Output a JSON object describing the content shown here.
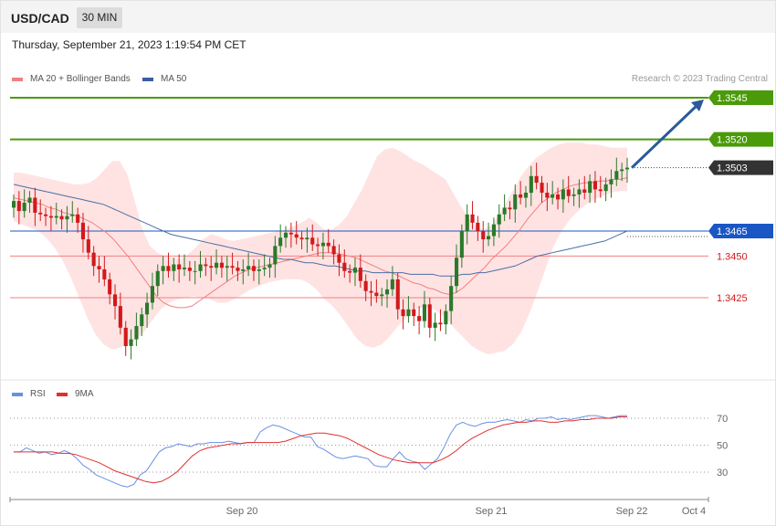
{
  "header": {
    "pair": "USD/CAD",
    "timeframe": "30 MIN",
    "timestamp": "Thursday, September 21, 2023 1:19:54 PM CET"
  },
  "legend": {
    "bollinger": "MA 20 + Bollinger Bands",
    "ma50": "MA 50",
    "credit": "Research © 2023 Trading Central",
    "rsi": "RSI",
    "rsi_ma": "9MA"
  },
  "colors": {
    "up": "#2a7a2a",
    "down": "#d2191b",
    "bands": "#ffe3e3",
    "ma20": "#f08080",
    "ma50": "#4a6fa5",
    "resistance": "#4a9a0a",
    "support": "#f08080",
    "pivot": "#1a56c4",
    "current": "#333333",
    "rsi": "#6b8fe3",
    "rsi_ma": "#e03030",
    "arrow": "#2a5a9a"
  },
  "chart_data": [
    {
      "type": "candlestick",
      "title": "USD/CAD 30 MIN",
      "ylim": [
        1.339,
        1.356
      ],
      "levels": [
        {
          "value": 1.3545,
          "label": "1.3545",
          "kind": "resistance"
        },
        {
          "value": 1.352,
          "label": "1.3520",
          "kind": "resistance"
        },
        {
          "value": 1.3503,
          "label": "1.3503",
          "kind": "current"
        },
        {
          "value": 1.3465,
          "label": "1.3465",
          "kind": "pivot"
        },
        {
          "value": 1.345,
          "label": "1.3450",
          "kind": "support"
        },
        {
          "value": 1.3425,
          "label": "1.3425",
          "kind": "support"
        }
      ],
      "xticks": [
        "Sep 20",
        "Sep 21",
        "Sep 22",
        "Oct 4"
      ],
      "closes": [
        1.3483,
        1.3477,
        1.3482,
        1.3485,
        1.3476,
        1.3475,
        1.3474,
        1.3473,
        1.3474,
        1.3472,
        1.3474,
        1.3475,
        1.347,
        1.346,
        1.3452,
        1.3444,
        1.3442,
        1.3436,
        1.3427,
        1.342,
        1.3407,
        1.3396,
        1.34,
        1.3408,
        1.3415,
        1.3422,
        1.3432,
        1.3441,
        1.3444,
        1.3441,
        1.3445,
        1.3442,
        1.3443,
        1.3441,
        1.3441,
        1.3445,
        1.3444,
        1.3443,
        1.3446,
        1.3443,
        1.3444,
        1.3443,
        1.3441,
        1.3442,
        1.3444,
        1.3441,
        1.3442,
        1.3443,
        1.3445,
        1.3456,
        1.3461,
        1.3464,
        1.3463,
        1.3461,
        1.346,
        1.3461,
        1.3457,
        1.3456,
        1.3458,
        1.3456,
        1.3451,
        1.3446,
        1.3441,
        1.344,
        1.3443,
        1.3435,
        1.3429,
        1.3428,
        1.3426,
        1.3427,
        1.343,
        1.3436,
        1.3418,
        1.3414,
        1.3418,
        1.3414,
        1.3411,
        1.3421,
        1.3407,
        1.341,
        1.3409,
        1.3417,
        1.3432,
        1.3449,
        1.3465,
        1.3475,
        1.347,
        1.3465,
        1.346,
        1.3462,
        1.3469,
        1.3475,
        1.3479,
        1.3478,
        1.3487,
        1.3485,
        1.3488,
        1.3498,
        1.3494,
        1.3488,
        1.3485,
        1.3487,
        1.3484,
        1.349,
        1.3486,
        1.3487,
        1.349,
        1.3488,
        1.3495,
        1.349,
        1.3489,
        1.3493,
        1.3496,
        1.3501,
        1.3502,
        1.3503
      ],
      "ma20": [
        1.3485,
        1.3484,
        1.3483,
        1.3482,
        1.3481,
        1.3479,
        1.3478,
        1.3476,
        1.3475,
        1.3474,
        1.3472,
        1.347,
        1.3467,
        1.3464,
        1.346,
        1.3455,
        1.345,
        1.3444,
        1.3438,
        1.3432,
        1.3426,
        1.3422,
        1.342,
        1.3419,
        1.3419,
        1.342,
        1.3423,
        1.3426,
        1.3429,
        1.3432,
        1.3435,
        1.3438,
        1.344,
        1.3442,
        1.3443,
        1.3444,
        1.3445,
        1.3446,
        1.3447,
        1.3448,
        1.3449,
        1.345,
        1.3451,
        1.3452,
        1.3452,
        1.3452,
        1.3451,
        1.345,
        1.3449,
        1.3447,
        1.3445,
        1.3443,
        1.3441,
        1.344,
        1.3438,
        1.3436,
        1.3434,
        1.3433,
        1.3431,
        1.343,
        1.3428,
        1.3427,
        1.3428,
        1.3431,
        1.3435,
        1.3439,
        1.3443,
        1.3448,
        1.3452,
        1.3456,
        1.3461,
        1.3466,
        1.3472,
        1.3477,
        1.3482,
        1.3485,
        1.3488,
        1.349,
        1.3492,
        1.3493,
        1.3494,
        1.3494,
        1.3495,
        1.3495,
        1.3496,
        1.3496,
        1.3497
      ],
      "upper_band": [
        1.35,
        1.35,
        1.3499,
        1.3498,
        1.3497,
        1.3496,
        1.3495,
        1.3494,
        1.3493,
        1.3493,
        1.3494,
        1.3497,
        1.3502,
        1.3507,
        1.3507,
        1.3499,
        1.3483,
        1.3466,
        1.3456,
        1.3452,
        1.345,
        1.3449,
        1.3448,
        1.3451,
        1.3455,
        1.346,
        1.3463,
        1.3462,
        1.346,
        1.3459,
        1.346,
        1.3461,
        1.3462,
        1.3463,
        1.3464,
        1.3465,
        1.3466,
        1.3468,
        1.347,
        1.3473,
        1.347,
        1.3466,
        1.3466,
        1.3469,
        1.3474,
        1.3482,
        1.349,
        1.35,
        1.351,
        1.3514,
        1.3515,
        1.3513,
        1.351,
        1.3507,
        1.3505,
        1.3502,
        1.3499,
        1.3496,
        1.3488,
        1.348,
        1.3473,
        1.3468,
        1.3466,
        1.3468,
        1.3474,
        1.3482,
        1.349,
        1.3498,
        1.3504,
        1.3509,
        1.3512,
        1.3515,
        1.3517,
        1.3518,
        1.3518,
        1.3518,
        1.3517,
        1.3517,
        1.3516,
        1.3515,
        1.3515,
        1.3515
      ],
      "lower_band": [
        1.3471,
        1.3469,
        1.3467,
        1.3465,
        1.3461,
        1.3455,
        1.3447,
        1.3437,
        1.3425,
        1.3413,
        1.3403,
        1.3397,
        1.3394,
        1.3395,
        1.3397,
        1.34,
        1.3405,
        1.3412,
        1.3418,
        1.3422,
        1.3424,
        1.3425,
        1.3426,
        1.3425,
        1.3424,
        1.3422,
        1.3422,
        1.3424,
        1.3427,
        1.343,
        1.3432,
        1.3434,
        1.3435,
        1.3436,
        1.3436,
        1.3436,
        1.3434,
        1.343,
        1.3424,
        1.342,
        1.3414,
        1.3407,
        1.34,
        1.3396,
        1.3395,
        1.3397,
        1.3402,
        1.3408,
        1.3413,
        1.3418,
        1.3419,
        1.3419,
        1.3416,
        1.3412,
        1.3406,
        1.3401,
        1.3396,
        1.3393,
        1.3391,
        1.3392,
        1.3393,
        1.3397,
        1.3404,
        1.3415,
        1.3428,
        1.3442,
        1.3456,
        1.3465,
        1.3472,
        1.3477,
        1.3481,
        1.3484,
        1.3486,
        1.3488,
        1.3489,
        1.3489
      ],
      "ma50": [
        1.3493,
        1.3492,
        1.3491,
        1.349,
        1.3489,
        1.3488,
        1.3487,
        1.3486,
        1.3485,
        1.3484,
        1.3483,
        1.3482,
        1.3481,
        1.3479,
        1.3477,
        1.3475,
        1.3473,
        1.3471,
        1.3469,
        1.3467,
        1.3465,
        1.3463,
        1.3462,
        1.3461,
        1.346,
        1.3459,
        1.3458,
        1.3457,
        1.3456,
        1.3455,
        1.3454,
        1.3453,
        1.3452,
        1.3451,
        1.345,
        1.3449,
        1.3448,
        1.3448,
        1.3447,
        1.3446,
        1.3446,
        1.3445,
        1.3444,
        1.3444,
        1.3443,
        1.3442,
        1.3441,
        1.3441,
        1.344,
        1.344,
        1.344,
        1.344,
        1.344,
        1.3439,
        1.3439,
        1.3439,
        1.3439,
        1.3438,
        1.3438,
        1.3438,
        1.3439,
        1.3439,
        1.344,
        1.344,
        1.3441,
        1.3442,
        1.3443,
        1.3444,
        1.3446,
        1.3448,
        1.345,
        1.3451,
        1.3452,
        1.3453,
        1.3454,
        1.3455,
        1.3456,
        1.3457,
        1.3458,
        1.3459,
        1.3461,
        1.3463,
        1.3465
      ]
    },
    {
      "type": "line",
      "title": "RSI",
      "ylim": [
        15,
        85
      ],
      "yticks": [
        70,
        50,
        30
      ],
      "series": [
        {
          "name": "RSI",
          "values": [
            45,
            45,
            48,
            46,
            44,
            45,
            43,
            44,
            46,
            44,
            40,
            35,
            32,
            28,
            26,
            24,
            22,
            20,
            19,
            21,
            28,
            31,
            38,
            45,
            48,
            49,
            51,
            50,
            49,
            51,
            51,
            52,
            52,
            52,
            53,
            52,
            51,
            52,
            52,
            60,
            63,
            65,
            64,
            62,
            60,
            58,
            56,
            56,
            49,
            47,
            44,
            41,
            40,
            41,
            42,
            41,
            40,
            35,
            34,
            34,
            40,
            45,
            40,
            38,
            37,
            32,
            36,
            40,
            48,
            58,
            65,
            67,
            65,
            64,
            66,
            67,
            67,
            68,
            69,
            68,
            67,
            69,
            68,
            70,
            70,
            71,
            69,
            70,
            69,
            70,
            71,
            72,
            72,
            71,
            70,
            71,
            72,
            72
          ]
        },
        {
          "name": "9MA",
          "values": [
            45,
            45,
            45,
            45,
            45,
            45,
            44,
            44,
            43,
            41,
            39,
            37,
            34,
            31,
            29,
            27,
            25,
            23,
            22,
            23,
            26,
            30,
            36,
            42,
            46,
            48,
            49,
            50,
            51,
            51,
            52,
            52,
            52,
            52,
            52,
            53,
            55,
            57,
            58,
            59,
            59,
            58,
            57,
            55,
            52,
            49,
            46,
            43,
            41,
            39,
            38,
            37,
            37,
            37,
            37,
            39,
            42,
            46,
            51,
            55,
            58,
            61,
            63,
            65,
            66,
            67,
            67,
            68,
            68,
            67,
            67,
            68,
            68,
            69,
            69,
            70,
            70,
            70,
            71,
            71
          ]
        }
      ]
    }
  ]
}
